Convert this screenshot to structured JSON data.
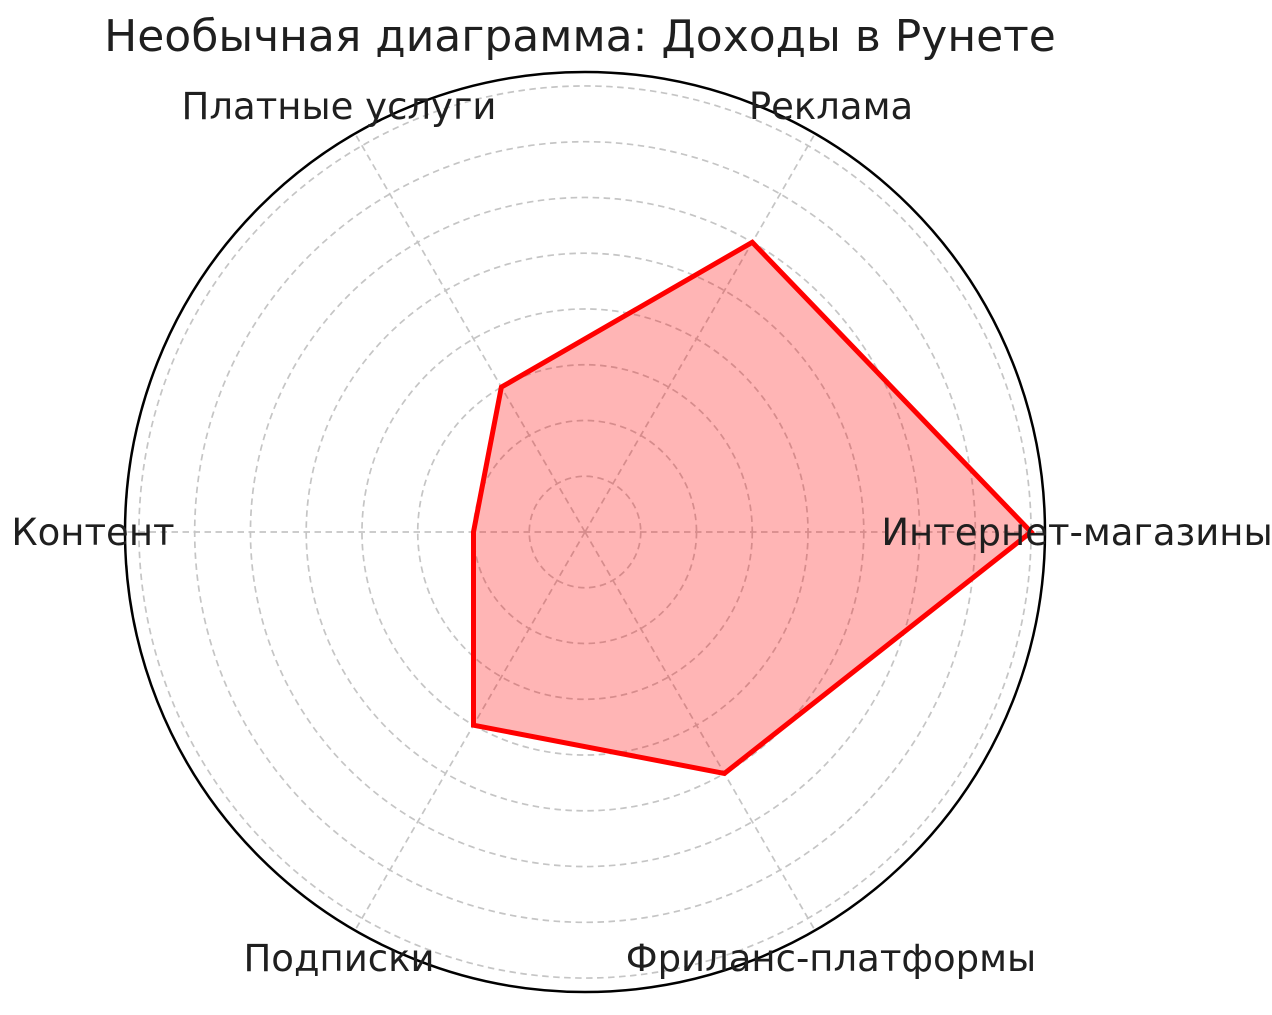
{
  "chart_data": {
    "type": "radar",
    "title": "Необычная диаграмма: Доходы в Рунете",
    "categories": [
      "Интернет-магазины",
      "Реклама",
      "Платные услуги",
      "Контент",
      "Подписки",
      "Фриланс-платформы"
    ],
    "values": [
      8,
      6,
      3,
      2,
      4,
      5
    ],
    "angles_deg": [
      0,
      60,
      120,
      180,
      240,
      300
    ],
    "rmax": 8.25,
    "ring_ticks": [
      1,
      2,
      3,
      4,
      5,
      6,
      7,
      8
    ],
    "radial_tick_labels": "hidden",
    "legend": "none",
    "grid_style": "dashed",
    "colors": {
      "series_line": "#ff0000",
      "series_fill": "#ff0000",
      "series_fill_opacity": 0.29,
      "grid": "#c5c5c5",
      "outline": "#000000",
      "text": "#1f1f1f",
      "background": "#ffffff"
    }
  }
}
